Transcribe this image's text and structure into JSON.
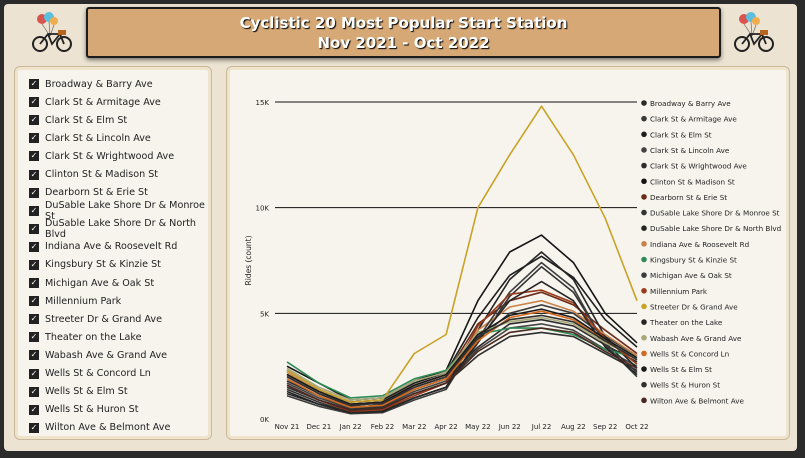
{
  "title": {
    "line1": "Cyclistic 20 Most Popular Start Station",
    "line2": "Nov 2021 - Oct 2022"
  },
  "logo_icon": "bicycle-with-balloons-icon",
  "slicer": {
    "items": [
      "Broadway & Barry Ave",
      "Clark St & Armitage Ave",
      "Clark St & Elm St",
      "Clark St & Lincoln Ave",
      "Clark St & Wrightwood Ave",
      "Clinton St & Madison St",
      "Dearborn St & Erie St",
      "DuSable Lake Shore Dr & Monroe St",
      "DuSable Lake Shore Dr & North Blvd",
      "Indiana Ave & Roosevelt Rd",
      "Kingsbury St & Kinzie St",
      "Michigan Ave & Oak St",
      "Millennium Park",
      "Streeter Dr & Grand Ave",
      "Theater on the Lake",
      "Wabash Ave & Grand Ave",
      "Wells St & Concord Ln",
      "Wells St & Elm St",
      "Wells St & Huron St",
      "Wilton Ave & Belmont Ave"
    ],
    "checked_icon": "checkmark-icon"
  },
  "chart_data": {
    "type": "line",
    "ylabel": "Rides (count)",
    "xlabel": "",
    "categories": [
      "Nov 21",
      "Dec 21",
      "Jan 22",
      "Feb 22",
      "Mar 22",
      "Apr 22",
      "May 22",
      "Jun 22",
      "Jul 22",
      "Aug 22",
      "Sep 22",
      "Oct 22"
    ],
    "ylim": [
      0,
      15000
    ],
    "yticks": [
      0,
      5000,
      10000,
      15000
    ],
    "ytick_labels": [
      "0K",
      "5K",
      "10K",
      "15K"
    ],
    "grid": true,
    "legend_position": "right",
    "series": [
      {
        "name": "Broadway & Barry Ave",
        "color": "#2a2a2a",
        "values": [
          1800,
          1100,
          500,
          700,
          1400,
          1900,
          3400,
          4500,
          4700,
          4400,
          3500,
          2700
        ]
      },
      {
        "name": "Clark St & Armitage Ave",
        "color": "#3a3a3a",
        "values": [
          2000,
          1200,
          600,
          800,
          1500,
          2000,
          3800,
          5000,
          5400,
          5000,
          3900,
          3000
        ]
      },
      {
        "name": "Clark St & Elm St",
        "color": "#1e1e1e",
        "values": [
          2300,
          1400,
          800,
          900,
          1700,
          2200,
          4800,
          6800,
          7700,
          6700,
          4700,
          3400
        ]
      },
      {
        "name": "Clark St & Lincoln Ave",
        "color": "#444444",
        "values": [
          1700,
          1000,
          500,
          600,
          1300,
          1800,
          3300,
          4300,
          4500,
          4200,
          3300,
          2500
        ]
      },
      {
        "name": "Clark St & Wrightwood Ave",
        "color": "#2e2e2e",
        "values": [
          1500,
          900,
          450,
          550,
          1200,
          1700,
          3000,
          3900,
          4100,
          3900,
          3100,
          2300
        ]
      },
      {
        "name": "Clinton St & Madison St",
        "color": "#151515",
        "values": [
          2500,
          1700,
          900,
          1000,
          1800,
          2300,
          5600,
          7900,
          8700,
          7400,
          5000,
          3600
        ]
      },
      {
        "name": "Dearborn St & Erie St",
        "color": "#6b2c1a",
        "values": [
          2100,
          1300,
          700,
          800,
          1600,
          2100,
          4500,
          5600,
          6000,
          5400,
          4200,
          3100
        ]
      },
      {
        "name": "DuSable Lake Shore Dr & Monroe St",
        "color": "#333333",
        "values": [
          1400,
          800,
          300,
          400,
          1000,
          1500,
          3600,
          5800,
          7200,
          6000,
          3600,
          2200
        ]
      },
      {
        "name": "DuSable Lake Shore Dr & North Blvd",
        "color": "#252525",
        "values": [
          1300,
          700,
          300,
          350,
          1000,
          1500,
          4200,
          6600,
          7900,
          6600,
          3900,
          2400
        ]
      },
      {
        "name": "Indiana Ave & Roosevelt Rd",
        "color": "#c8834b",
        "values": [
          2200,
          1300,
          700,
          800,
          1600,
          2100,
          4200,
          5300,
          5600,
          5100,
          4000,
          3000
        ]
      },
      {
        "name": "Kingsbury St & Kinzie St",
        "color": "#2e8b57",
        "values": [
          2700,
          1700,
          1000,
          1100,
          1900,
          2300,
          4000,
          4300,
          4300,
          4000,
          3300,
          2900
        ]
      },
      {
        "name": "Michigan Ave & Oak St",
        "color": "#3c3c3c",
        "values": [
          1100,
          600,
          250,
          300,
          900,
          1400,
          3800,
          6000,
          7400,
          6200,
          3500,
          2000
        ]
      },
      {
        "name": "Millennium Park",
        "color": "#9a3a1c",
        "values": [
          1600,
          900,
          350,
          450,
          1100,
          1700,
          4400,
          5900,
          6100,
          5500,
          3800,
          2600
        ]
      },
      {
        "name": "Streeter Dr & Grand Ave",
        "color": "#c9a227",
        "values": [
          2300,
          1400,
          800,
          900,
          3100,
          4000,
          10000,
          12500,
          14800,
          12500,
          9500,
          5600
        ]
      },
      {
        "name": "Theater on the Lake",
        "color": "#262626",
        "values": [
          1200,
          700,
          300,
          350,
          1000,
          1500,
          3700,
          5600,
          6500,
          5600,
          3400,
          2100
        ]
      },
      {
        "name": "Wabash Ave & Grand Ave",
        "color": "#a8a878",
        "values": [
          2400,
          1500,
          900,
          1000,
          1800,
          2200,
          4100,
          4600,
          4800,
          4500,
          3600,
          2900
        ]
      },
      {
        "name": "Wells St & Concord Ln",
        "color": "#d2691e",
        "values": [
          1900,
          1100,
          550,
          650,
          1400,
          1900,
          3700,
          4800,
          5100,
          4700,
          3700,
          2800
        ]
      },
      {
        "name": "Wells St & Elm St",
        "color": "#1a1a1a",
        "values": [
          2100,
          1300,
          700,
          800,
          1600,
          2100,
          4000,
          4900,
          5200,
          4800,
          3800,
          2900
        ]
      },
      {
        "name": "Wells St & Huron St",
        "color": "#303030",
        "values": [
          2000,
          1200,
          650,
          750,
          1500,
          2000,
          3900,
          4700,
          4900,
          4600,
          3700,
          2800
        ]
      },
      {
        "name": "Wilton Ave & Belmont Ave",
        "color": "#4a2a20",
        "values": [
          1600,
          900,
          400,
          500,
          1200,
          1700,
          3200,
          4100,
          4300,
          4100,
          3200,
          2400
        ]
      }
    ]
  }
}
